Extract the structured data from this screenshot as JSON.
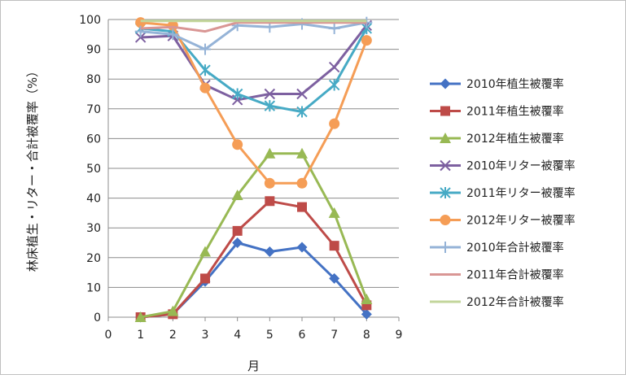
{
  "chart_data": {
    "type": "line",
    "title": "",
    "xlabel": "月",
    "ylabel": "林床植生・リター・合計被覆率（%）",
    "xlim": [
      0,
      9
    ],
    "ylim": [
      0,
      100
    ],
    "xticks": [
      0,
      1,
      2,
      3,
      4,
      5,
      6,
      7,
      8,
      9
    ],
    "yticks": [
      0,
      10,
      20,
      30,
      40,
      50,
      60,
      70,
      80,
      90,
      100
    ],
    "grid": "horizontal",
    "legend_position": "right",
    "x": [
      1,
      2,
      3,
      4,
      5,
      6,
      7,
      8
    ],
    "series": [
      {
        "name": "2010年植生被覆率",
        "color": "#4472c4",
        "marker": "diamond",
        "values": [
          0,
          1,
          12,
          25,
          22,
          23.5,
          13,
          1
        ]
      },
      {
        "name": "2011年植生被覆率",
        "color": "#be4b48",
        "marker": "square",
        "values": [
          0,
          1,
          13,
          29,
          39,
          37,
          24,
          4
        ]
      },
      {
        "name": "2012年植生被覆率",
        "color": "#98b954",
        "marker": "triangle",
        "values": [
          0,
          2,
          22,
          41,
          55,
          55,
          35,
          6
        ]
      },
      {
        "name": "2010年リター被覆率",
        "color": "#7d60a0",
        "marker": "x",
        "values": [
          94,
          94.5,
          78,
          73,
          75,
          75,
          84,
          98
        ]
      },
      {
        "name": "2011年リター被覆率",
        "color": "#46aac5",
        "marker": "asterisk",
        "values": [
          97,
          96,
          83,
          75,
          71,
          69,
          78,
          97
        ]
      },
      {
        "name": "2012年リター被覆率",
        "color": "#f59d56",
        "marker": "circle",
        "values": [
          99,
          98,
          77,
          58,
          45,
          45,
          65,
          93
        ]
      },
      {
        "name": "2010年合計被覆率",
        "color": "#95b3d7",
        "marker": "plus",
        "values": [
          96,
          95,
          90,
          98,
          97.5,
          98.5,
          97,
          99
        ]
      },
      {
        "name": "2011年合計被覆率",
        "color": "#d99694",
        "marker": "none",
        "values": [
          97,
          97.5,
          96,
          99,
          99,
          99,
          99,
          99
        ]
      },
      {
        "name": "2012年合計被覆率",
        "color": "#c3d69b",
        "marker": "none",
        "values": [
          99.5,
          99.5,
          99.5,
          99.5,
          99.5,
          99.5,
          99.5,
          99.5
        ]
      }
    ]
  }
}
